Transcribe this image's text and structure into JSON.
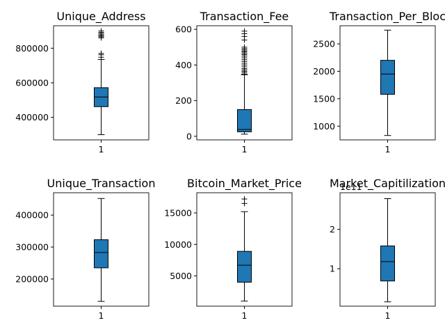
{
  "chart_data": [
    {
      "type": "box",
      "title": "Unique_Address",
      "xticks": [
        "1"
      ],
      "ylim": [
        270000,
        930000
      ],
      "yticks": [
        400000,
        600000,
        800000
      ],
      "ytick_labels": [
        "400000",
        "600000",
        "800000"
      ],
      "offset_label": "",
      "box": {
        "whisker_low": 300000,
        "q1": 462000,
        "median": 518000,
        "q3": 572000,
        "whisker_high": 735000
      },
      "outliers": [
        748000,
        762000,
        770000,
        860000,
        866000,
        872000,
        878000,
        885000,
        892000,
        900000
      ]
    },
    {
      "type": "box",
      "title": "Transaction_Fee",
      "xticks": [
        "1"
      ],
      "ylim": [
        -20,
        620
      ],
      "yticks": [
        0,
        200,
        400,
        600
      ],
      "ytick_labels": [
        "0",
        "200",
        "400",
        "600"
      ],
      "offset_label": "",
      "box": {
        "whisker_low": 12,
        "q1": 25,
        "median": 38,
        "q3": 150,
        "whisker_high": 345
      },
      "outliers": [
        350,
        358,
        365,
        372,
        380,
        390,
        400,
        410,
        420,
        430,
        440,
        450,
        458,
        465,
        472,
        478,
        485,
        492,
        500,
        540,
        560,
        575,
        590
      ]
    },
    {
      "type": "box",
      "title": "Transaction_Per_Bloc",
      "xticks": [
        "1"
      ],
      "ylim": [
        750,
        2830
      ],
      "yticks": [
        1000,
        1500,
        2000,
        2500
      ],
      "ytick_labels": [
        "1000",
        "1500",
        "2000",
        "2500"
      ],
      "offset_label": "",
      "box": {
        "whisker_low": 830,
        "q1": 1580,
        "median": 1950,
        "q3": 2200,
        "whisker_high": 2750
      },
      "outliers": []
    },
    {
      "type": "box",
      "title": "Unique_Transaction",
      "xticks": [
        "1"
      ],
      "ylim": [
        115000,
        470000
      ],
      "yticks": [
        200000,
        300000,
        400000
      ],
      "ytick_labels": [
        "200000",
        "300000",
        "400000"
      ],
      "offset_label": "",
      "box": {
        "whisker_low": 130000,
        "q1": 235000,
        "median": 283000,
        "q3": 323000,
        "whisker_high": 452000
      },
      "outliers": []
    },
    {
      "type": "box",
      "title": "Bitcoin_Market_Price",
      "xticks": [
        "1"
      ],
      "ylim": [
        200,
        18200
      ],
      "yticks": [
        5000,
        10000,
        15000
      ],
      "ytick_labels": [
        "5000",
        "10000",
        "15000"
      ],
      "offset_label": "",
      "box": {
        "whisker_low": 1000,
        "q1": 4000,
        "median": 6700,
        "q3": 8900,
        "whisker_high": 15200
      },
      "outliers": [
        16500,
        17200
      ]
    },
    {
      "type": "box",
      "title": "Market_Capitilization",
      "xticks": [
        "1"
      ],
      "ylim": [
        0.05,
        2.93
      ],
      "yticks": [
        1,
        2
      ],
      "ytick_labels": [
        "1",
        "2"
      ],
      "offset_label": "1e11",
      "box": {
        "whisker_low": 0.16,
        "q1": 0.69,
        "median": 1.18,
        "q3": 1.58,
        "whisker_high": 2.78
      },
      "outliers": []
    }
  ]
}
